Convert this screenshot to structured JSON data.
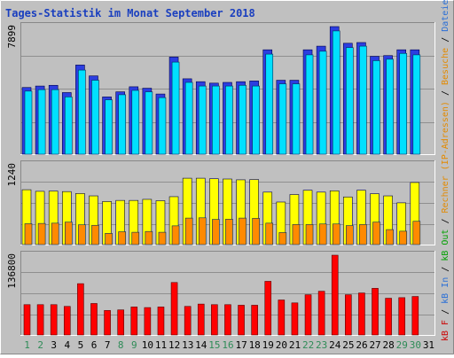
{
  "chart_data": [
    {
      "type": "bar",
      "title": "Tages-Statistik im Monat September 2018",
      "y_tick_label": "7899",
      "categories": [
        "1",
        "2",
        "3",
        "4",
        "5",
        "6",
        "7",
        "8",
        "9",
        "10",
        "11",
        "12",
        "13",
        "14",
        "15",
        "16",
        "17",
        "18",
        "19",
        "20",
        "21",
        "22",
        "23",
        "24",
        "25",
        "26",
        "27",
        "28",
        "29",
        "30",
        "31"
      ],
      "series": [
        {
          "name": "Anfragen",
          "color": "#2c3ee0",
          "values": [
            4600,
            4700,
            4750,
            4250,
            6150,
            5400,
            3950,
            4300,
            4650,
            4550,
            4150,
            6700,
            5200,
            5000,
            4900,
            4950,
            5000,
            5050,
            7200,
            5100,
            5100,
            7200,
            7450,
            8800,
            7650,
            7700,
            6750,
            6800,
            7200,
            7200,
            null
          ]
        },
        {
          "name": "Dateien",
          "color": "#00e0ff",
          "values": [
            4350,
            4450,
            4450,
            3950,
            5800,
            5100,
            3750,
            4100,
            4400,
            4300,
            3900,
            6350,
            4950,
            4700,
            4700,
            4700,
            4750,
            4700,
            6900,
            4850,
            4850,
            6850,
            7100,
            8500,
            7350,
            7450,
            6450,
            6550,
            6950,
            6850,
            null
          ]
        }
      ],
      "ylim": [
        0,
        8800
      ]
    },
    {
      "type": "bar",
      "y_tick_label": "1240",
      "series": [
        {
          "name": "Rechner (IP-Adressen)",
          "color": "#ffff00",
          "values": [
            1025,
            995,
            1000,
            990,
            955,
            910,
            805,
            825,
            825,
            845,
            820,
            895,
            1240,
            1240,
            1230,
            1225,
            1210,
            1215,
            980,
            795,
            935,
            1015,
            980,
            1005,
            890,
            1015,
            950,
            910,
            780,
            1160,
            null
          ]
        },
        {
          "name": "Besuche",
          "color": "#ff8a00",
          "values": [
            390,
            395,
            400,
            420,
            370,
            360,
            210,
            240,
            230,
            245,
            230,
            350,
            495,
            500,
            470,
            475,
            495,
            490,
            400,
            225,
            375,
            375,
            385,
            385,
            355,
            375,
            420,
            280,
            250,
            435,
            null
          ]
        }
      ],
      "ylim": [
        0,
        1490
      ]
    },
    {
      "type": "bar",
      "y_tick_label": "136800",
      "series": [
        {
          "name": "kB F",
          "color": "#ff0000",
          "values": [
            52000,
            52000,
            52000,
            49000,
            88000,
            54000,
            42000,
            43000,
            48000,
            47000,
            48000,
            90000,
            49000,
            53000,
            52000,
            52000,
            51000,
            51000,
            92000,
            60000,
            55000,
            69000,
            75000,
            136800,
            69000,
            72000,
            80000,
            63000,
            64000,
            66000,
            null
          ]
        }
      ],
      "ylim": [
        0,
        136800
      ]
    }
  ],
  "legend": {
    "separator": " / ",
    "items": [
      {
        "label": "kB F",
        "color": "#cc0000"
      },
      {
        "label": "kB In",
        "color": "#2a6fd6"
      },
      {
        "label": "kB Out",
        "color": "#00a000"
      },
      {
        "label": "Rechner (IP-Adressen)",
        "color": "#e38a00"
      },
      {
        "label": "Besuche",
        "color": "#e38a00"
      },
      {
        "label": "Dateien",
        "color": "#2a6fd6"
      },
      {
        "label": "Anfragen",
        "color": "#00a000"
      }
    ]
  },
  "colors": {
    "background": "#c0c0c0",
    "frame_dark": "#888888",
    "frame_light": "#ffffff",
    "gridline": "#8f8f8f",
    "title": "#1a3fbf",
    "axis_text": "#000000",
    "weekend_text": "#2e8b57"
  },
  "weekend_days": [
    1,
    2,
    8,
    9,
    15,
    16,
    22,
    23,
    29,
    30
  ]
}
